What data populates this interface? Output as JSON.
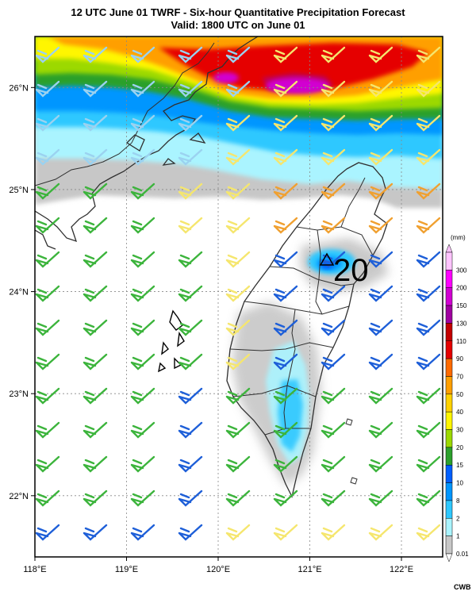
{
  "title_line1": "12 UTC June 01 TWRF - Six-hour Quantitative Precipitation Forecast",
  "title_line2": "Valid: 1800 UTC on June 01",
  "credit": "CWB",
  "map": {
    "x_ticks": [
      "118°E",
      "119°E",
      "120°E",
      "121°E",
      "122°E"
    ],
    "y_ticks": [
      "22°N",
      "23°N",
      "24°N",
      "25°N",
      "26°N"
    ],
    "extent": {
      "lon": [
        118,
        122.45
      ],
      "lat": [
        21.4,
        26.5
      ]
    },
    "label_20": "20"
  },
  "legend": {
    "unit": "(mm)",
    "levels": [
      "300",
      "200",
      "150",
      "130",
      "110",
      "90",
      "70",
      "50",
      "40",
      "30",
      "20",
      "15",
      "10",
      "8",
      "2",
      "1",
      "0.01"
    ],
    "colors": [
      "#ffc4ff",
      "#ff00ff",
      "#d100d1",
      "#a000a0",
      "#c40000",
      "#e50000",
      "#ff6a00",
      "#ff9f00",
      "#ffd200",
      "#fff600",
      "#9cd900",
      "#2ca02c",
      "#005fff",
      "#0096ff",
      "#2ec8ff",
      "#aaf4ff",
      "#c7c7c7"
    ],
    "colors_note": ""
  },
  "colors": {
    "wind_low": "#1e5fd8",
    "wind_mid": "#3cb43c",
    "wind_high": "#f5e66e",
    "wind_orange": "#f0a030",
    "wind_light": "#9bd2f0",
    "coast": "#303030"
  }
}
